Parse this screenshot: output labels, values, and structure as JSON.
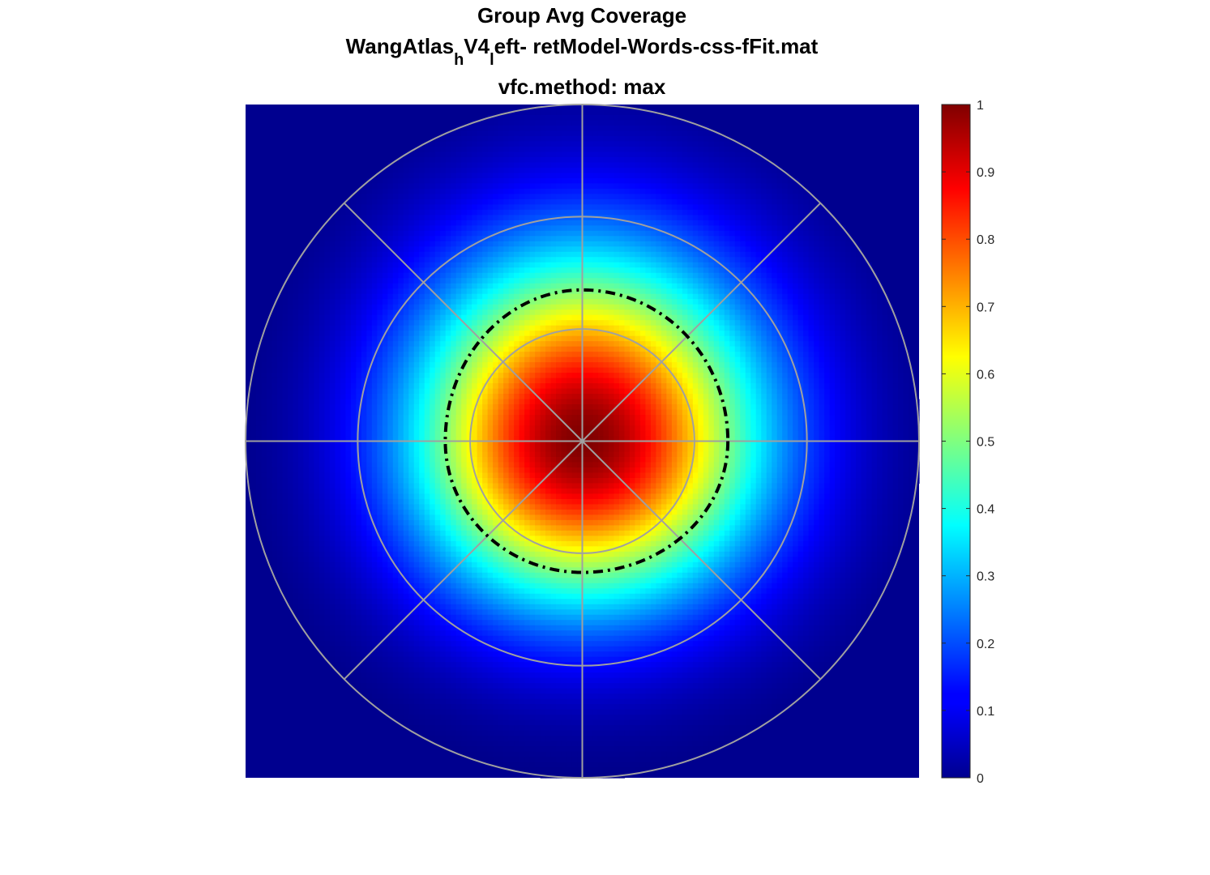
{
  "chart_data": {
    "type": "heatmap",
    "title_lines": {
      "line1": "Group Avg Coverage",
      "line2_parts": {
        "p1": "WangAtlas",
        "sub1": "h",
        "p2": "V4",
        "sub2": "l",
        "p3": "eft- retModel-Words-css-fFit.mat"
      },
      "line3": "vfc.method: max"
    },
    "colormap": "jet",
    "colorbar": {
      "clim": [
        0,
        1
      ],
      "ticks": [
        "0",
        "0.1",
        "0.2",
        "0.3",
        "0.4",
        "0.5",
        "0.6",
        "0.7",
        "0.8",
        "0.9",
        "1"
      ]
    },
    "coverage_model": {
      "peak": 1.0,
      "center": [
        0,
        0
      ],
      "falloff_sigma_fraction": 0.36,
      "boundary_value": 0.2
    },
    "polar_grid": {
      "rings_fraction_of_max": [
        0.333,
        0.667,
        1.0
      ],
      "spoke_angles_deg": [
        0,
        45,
        90,
        135,
        180,
        225,
        270,
        315
      ],
      "color": "#a0a0a0"
    },
    "contour": {
      "level": 0.5,
      "style": "dash-dot",
      "color": "#000000"
    },
    "outside_color": "#00008f"
  }
}
